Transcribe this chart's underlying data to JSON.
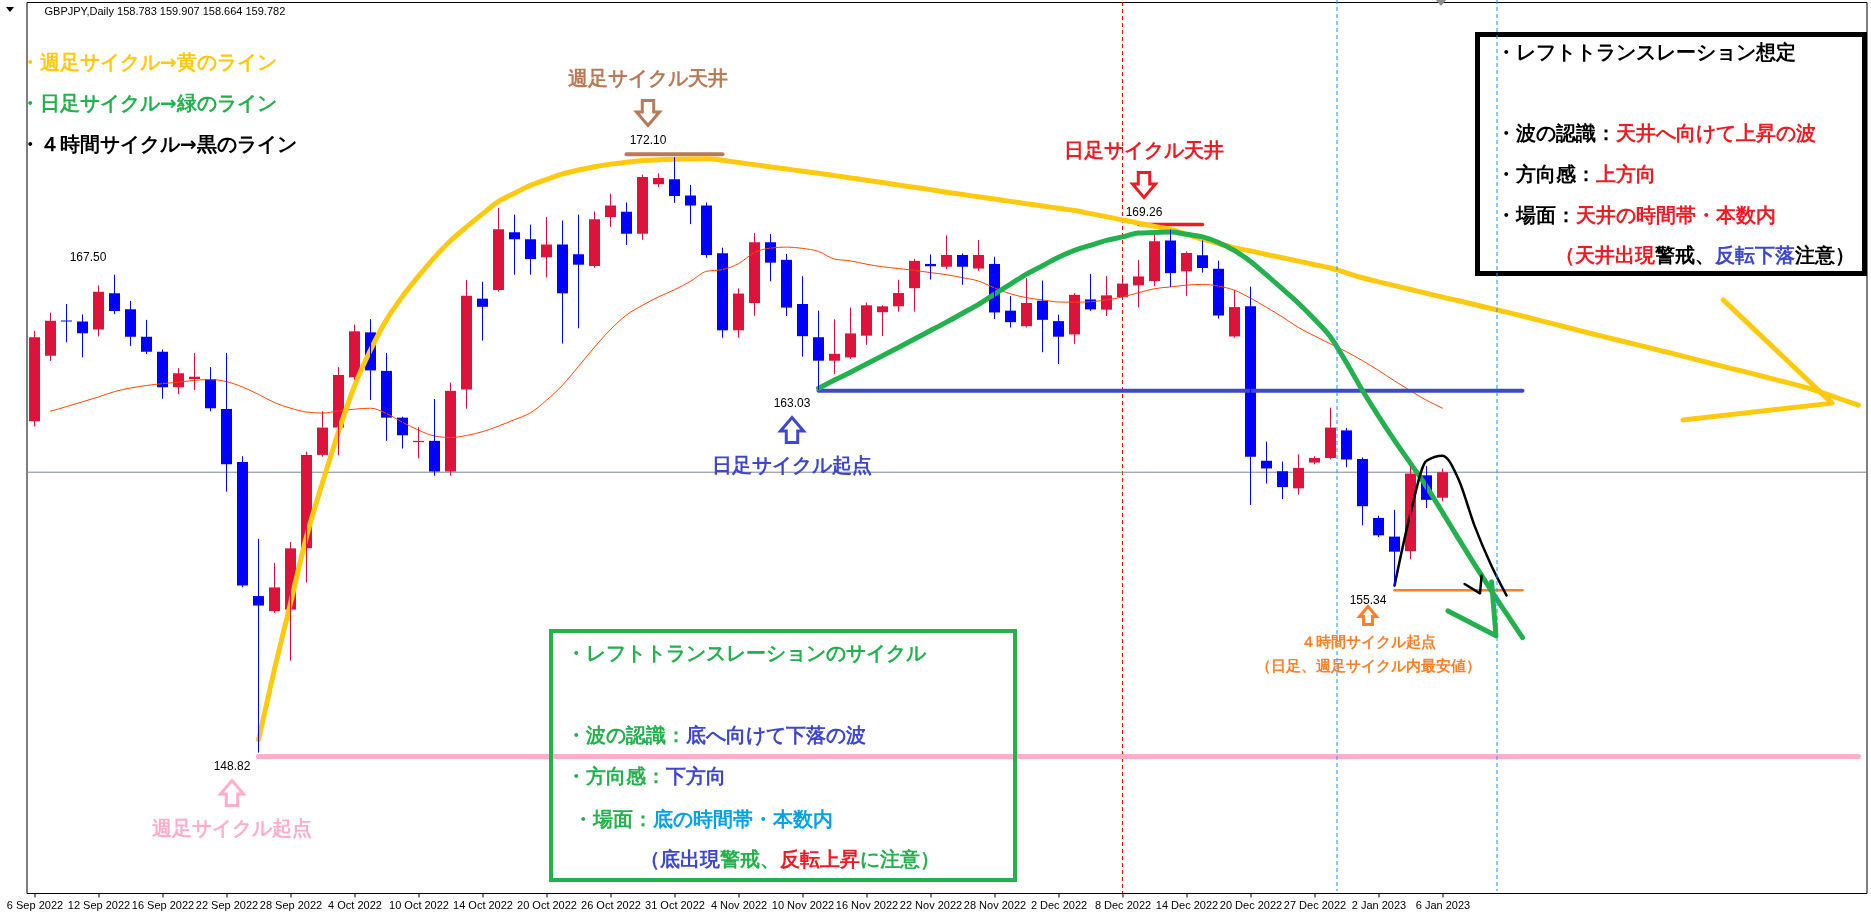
{
  "chart_data": {
    "type": "candlestick",
    "title": "GBPJPY,Daily 158.783 159.907 158.664 159.782",
    "categories": [
      "6 Sep 2022",
      null,
      null,
      null,
      "12 Sep 2022",
      null,
      null,
      null,
      "16 Sep 2022",
      null,
      null,
      null,
      "22 Sep 2022",
      null,
      null,
      null,
      "28 Sep 2022",
      null,
      null,
      null,
      "4 Oct 2022",
      null,
      null,
      null,
      "10 Oct 2022",
      null,
      null,
      null,
      "14 Oct 2022",
      null,
      null,
      null,
      "20 Oct 2022",
      null,
      null,
      null,
      "26 Oct 2022",
      null,
      null,
      null,
      "31 Oct 2022",
      null,
      null,
      null,
      "4 Nov 2022",
      null,
      null,
      null,
      "10 Nov 2022",
      null,
      null,
      null,
      "16 Nov 2022",
      null,
      null,
      null,
      "22 Nov 2022",
      null,
      null,
      null,
      "28 Nov 2022",
      null,
      null,
      null,
      "2 Dec 2022",
      null,
      null,
      null,
      "8 Dec 2022",
      null,
      null,
      null,
      "14 Dec 2022",
      null,
      null,
      null,
      "20 Dec 2022",
      null,
      null,
      null,
      "27 Dec 2022",
      null,
      null,
      null,
      "2 Jan 2023",
      null,
      null,
      null,
      "6 Jan 2023",
      null,
      null,
      null,
      null,
      null,
      null,
      null,
      null,
      null,
      null,
      null,
      null,
      null,
      null,
      null,
      null,
      null,
      null,
      null,
      null,
      null,
      null,
      null,
      null,
      null,
      null
    ],
    "ohlc": [
      [
        161.78,
        165.3,
        161.6,
        165.07
      ],
      [
        164.34,
        166.01,
        164.16,
        165.71
      ],
      [
        165.72,
        166.35,
        164.89,
        165.69
      ],
      [
        165.69,
        165.94,
        164.3,
        165.23
      ],
      [
        165.37,
        167.08,
        165.12,
        166.85
      ],
      [
        166.79,
        167.5,
        165.99,
        166.1
      ],
      [
        166.17,
        166.47,
        164.75,
        165.09
      ],
      [
        165.09,
        165.73,
        164.43,
        164.5
      ],
      [
        164.5,
        164.57,
        162.68,
        163.11
      ],
      [
        163.11,
        163.84,
        162.86,
        163.66
      ],
      [
        163.43,
        164.43,
        163.02,
        163.52
      ],
      [
        163.43,
        163.88,
        162.19,
        162.29
      ],
      [
        162.26,
        164.43,
        159.04,
        160.09
      ],
      [
        160.18,
        160.39,
        155.3,
        155.34
      ],
      [
        154.93,
        157.15,
        148.82,
        154.56
      ],
      [
        154.34,
        156.21,
        154.29,
        155.27
      ],
      [
        154.4,
        157.03,
        152.42,
        156.8
      ],
      [
        156.8,
        160.57,
        155.48,
        160.46
      ],
      [
        160.46,
        162.15,
        160.41,
        161.53
      ],
      [
        161.53,
        163.88,
        160.46,
        163.59
      ],
      [
        163.5,
        165.55,
        163.43,
        165.3
      ],
      [
        165.26,
        165.76,
        162.63,
        163.77
      ],
      [
        163.75,
        164.43,
        161.03,
        161.92
      ],
      [
        161.92,
        161.94,
        160.73,
        161.23
      ],
      [
        160.96,
        161.53,
        160.34,
        161.01
      ],
      [
        161.01,
        162.63,
        159.66,
        159.81
      ],
      [
        159.81,
        163.27,
        159.66,
        162.97
      ],
      [
        163.02,
        167.29,
        162.29,
        166.69
      ],
      [
        166.58,
        167.22,
        164.96,
        166.26
      ],
      [
        166.92,
        170.12,
        166.88,
        169.3
      ],
      [
        169.18,
        169.85,
        167.54,
        168.91
      ],
      [
        168.91,
        169.46,
        167.54,
        168.13
      ],
      [
        168.2,
        169.76,
        167.43,
        168.7
      ],
      [
        168.7,
        169.62,
        164.84,
        166.79
      ],
      [
        168.32,
        169.85,
        165.44,
        167.91
      ],
      [
        167.86,
        169.98,
        167.81,
        169.69
      ],
      [
        169.78,
        170.67,
        169.41,
        170.23
      ],
      [
        169.98,
        170.33,
        168.7,
        169.12
      ],
      [
        169.12,
        171.42,
        168.91,
        171.35
      ],
      [
        171.06,
        171.47,
        170.97,
        171.31
      ],
      [
        171.26,
        172.1,
        170.35,
        170.6
      ],
      [
        170.62,
        171.01,
        169.52,
        170.23
      ],
      [
        170.23,
        170.33,
        168.2,
        168.29
      ],
      [
        168.36,
        168.56,
        165.07,
        165.34
      ],
      [
        165.34,
        166.96,
        165.07,
        166.78
      ],
      [
        166.41,
        169.13,
        165.93,
        168.79
      ],
      [
        168.79,
        169.09,
        167.28,
        167.99
      ],
      [
        168.1,
        168.31,
        165.92,
        166.23
      ],
      [
        166.37,
        167.44,
        164.33,
        165.11
      ],
      [
        165.07,
        166.09,
        163.03,
        164.15
      ],
      [
        164.15,
        165.75,
        163.65,
        164.42
      ],
      [
        164.28,
        166.21,
        164.24,
        165.22
      ],
      [
        165.13,
        166.41,
        164.79,
        166.32
      ],
      [
        166.05,
        166.3,
        165.14,
        166.28
      ],
      [
        166.28,
        167.3,
        166.09,
        166.8
      ],
      [
        166.99,
        168.12,
        166.09,
        168.06
      ],
      [
        167.94,
        168.29,
        167.35,
        167.85
      ],
      [
        167.83,
        169.04,
        167.76,
        168.29
      ],
      [
        168.29,
        168.33,
        167.14,
        167.83
      ],
      [
        167.76,
        168.86,
        167.69,
        168.29
      ],
      [
        167.94,
        168.2,
        165.8,
        166.04
      ],
      [
        166.11,
        166.66,
        165.47,
        165.66
      ],
      [
        165.5,
        167.37,
        165.47,
        166.41
      ],
      [
        166.5,
        167.27,
        164.5,
        165.75
      ],
      [
        165.7,
        165.93,
        164.04,
        165.09
      ],
      [
        165.18,
        166.78,
        164.83,
        166.73
      ],
      [
        166.55,
        167.53,
        166.12,
        166.16
      ],
      [
        166.15,
        167.45,
        165.92,
        166.71
      ],
      [
        166.64,
        167.36,
        166.55,
        167.17
      ],
      [
        167.1,
        168.08,
        166.25,
        167.45
      ],
      [
        167.27,
        169.06,
        167.1,
        168.83
      ],
      [
        168.86,
        169.26,
        167.06,
        167.58
      ],
      [
        167.65,
        168.41,
        166.71,
        168.37
      ],
      [
        168.28,
        168.84,
        167.62,
        167.78
      ],
      [
        167.75,
        168.05,
        165.82,
        165.92
      ],
      [
        165.1,
        166.9,
        165.07,
        166.25
      ],
      [
        166.28,
        167.03,
        158.52,
        160.39
      ],
      [
        160.23,
        160.96,
        159.36,
        159.93
      ],
      [
        159.82,
        160.18,
        158.75,
        159.2
      ],
      [
        159.15,
        160.46,
        158.93,
        159.95
      ],
      [
        160.16,
        160.39,
        160.11,
        160.34
      ],
      [
        160.34,
        162.29,
        160.3,
        161.53
      ],
      [
        161.42,
        161.49,
        160.0,
        160.28
      ],
      [
        160.3,
        160.34,
        157.72,
        158.45
      ],
      [
        157.99,
        158.06,
        157.26,
        157.31
      ],
      [
        157.26,
        158.29,
        155.34,
        156.67
      ],
      [
        156.69,
        160.0,
        156.39,
        159.73
      ],
      [
        159.66,
        160.0,
        158.4,
        158.7
      ],
      [
        158.783,
        159.907,
        158.664,
        159.782
      ],
      null,
      null,
      null,
      null,
      null,
      null,
      null,
      null,
      null,
      null,
      null,
      null,
      null,
      null,
      null,
      null,
      null,
      null,
      null,
      null,
      null,
      null,
      null,
      null,
      null,
      null
    ],
    "colors": [
      "#dc143c",
      "#dc143c",
      "#0000ff",
      "#0000ff",
      "#dc143c",
      "#0000ff",
      "#0000ff",
      "#0000ff",
      "#0000ff",
      "#dc143c",
      "#dc143c",
      "#0000ff",
      "#0000ff",
      "#0000ff",
      "#0000ff",
      "#dc143c",
      "#dc143c",
      "#dc143c",
      "#dc143c",
      "#dc143c",
      "#dc143c",
      "#0000ff",
      "#0000ff",
      "#0000ff",
      "#dc143c",
      "#0000ff",
      "#dc143c",
      "#dc143c",
      "#0000ff",
      "#dc143c",
      "#0000ff",
      "#0000ff",
      "#dc143c",
      "#0000ff",
      "#0000ff",
      "#dc143c",
      "#dc143c",
      "#0000ff",
      "#dc143c",
      "#dc143c",
      "#0000ff",
      "#0000ff",
      "#0000ff",
      "#0000ff",
      "#dc143c",
      "#dc143c",
      "#0000ff",
      "#0000ff",
      "#0000ff",
      "#0000ff",
      "#dc143c",
      "#dc143c",
      "#dc143c",
      "#dc143c",
      "#dc143c",
      "#dc143c",
      "#0000ff",
      "#dc143c",
      "#0000ff",
      "#dc143c",
      "#0000ff",
      "#0000ff",
      "#dc143c",
      "#0000ff",
      "#0000ff",
      "#dc143c",
      "#0000ff",
      "#dc143c",
      "#dc143c",
      "#dc143c",
      "#dc143c",
      "#0000ff",
      "#dc143c",
      "#0000ff",
      "#0000ff",
      "#dc143c",
      "#0000ff",
      "#0000ff",
      "#0000ff",
      "#dc143c",
      "#dc143c",
      "#dc143c",
      "#0000ff",
      "#0000ff",
      "#0000ff",
      "#0000ff",
      "#dc143c",
      "#0000ff",
      "#dc143c",
      null,
      null,
      null,
      null,
      null,
      null,
      null,
      null,
      null,
      null,
      null,
      null,
      null,
      null,
      null,
      null,
      null,
      null,
      null,
      null,
      null,
      null,
      null,
      null,
      null,
      null
    ],
    "series": [
      {
        "type": "line",
        "color": "#ff4500",
        "values": [
          null,
          162.17,
          162.35,
          162.54,
          162.73,
          162.94,
          163.08,
          163.18,
          163.25,
          163.31,
          163.38,
          163.41,
          163.33,
          163.12,
          162.83,
          162.51,
          162.29,
          162.14,
          162.1,
          162.18,
          162.25,
          162.29,
          162.08,
          161.74,
          161.43,
          161.2,
          161.14,
          161.22,
          161.37,
          161.59,
          161.84,
          162.11,
          162.6,
          163.19,
          163.93,
          164.68,
          165.37,
          165.94,
          166.32,
          166.65,
          166.93,
          167.26,
          167.65,
          167.72,
          167.95,
          168.39,
          168.56,
          168.6,
          168.55,
          168.43,
          168.13,
          168.06,
          167.93,
          167.83,
          167.76,
          167.69,
          167.6,
          167.52,
          167.4,
          167.27,
          167.0,
          166.77,
          166.62,
          166.53,
          166.45,
          166.44,
          166.46,
          166.53,
          166.65,
          166.81,
          166.97,
          167.04,
          167.11,
          167.14,
          167.07,
          166.91,
          166.6,
          166.24,
          165.86,
          165.45,
          165.12,
          164.81,
          164.5,
          164.15,
          163.77,
          163.36,
          162.97,
          162.6,
          162.29,
          null,
          null,
          null,
          null,
          null,
          null,
          null,
          null,
          null,
          null,
          null,
          null,
          null,
          null,
          null,
          null,
          null,
          null,
          null,
          null,
          null,
          null,
          null,
          null,
          null,
          null
        ]
      },
      {
        "type": "line",
        "color": "#ffaec9",
        "values": [
          null,
          null,
          null,
          null,
          null,
          null,
          null,
          null,
          null,
          null,
          null,
          null,
          null,
          null,
          148.65,
          148.65,
          148.65,
          148.65,
          148.65,
          148.65,
          148.65,
          148.65,
          148.65,
          148.65,
          148.65,
          148.65,
          148.65,
          148.65,
          148.65,
          148.65,
          148.65,
          148.65,
          148.65,
          148.65,
          148.65,
          148.65,
          148.65,
          148.65,
          148.65,
          148.65,
          148.65,
          148.65,
          148.65,
          148.65,
          148.65,
          148.65,
          148.65,
          148.65,
          148.65,
          148.65,
          148.65,
          148.65,
          148.65,
          148.65,
          148.65,
          148.65,
          148.65,
          148.65,
          148.65,
          148.65,
          148.65,
          148.65,
          148.65,
          148.65,
          148.65,
          148.65,
          148.65,
          148.65,
          148.65,
          148.65,
          148.65,
          148.65,
          148.65,
          148.65,
          148.65,
          148.65,
          148.65,
          148.65,
          148.65,
          148.65,
          148.65,
          148.65,
          148.65,
          148.65,
          148.65,
          148.65,
          148.65,
          148.65,
          148.65,
          148.65,
          148.65,
          148.65,
          148.65,
          148.65,
          148.65,
          148.65,
          148.65,
          148.65,
          148.65,
          148.65,
          148.65,
          148.65,
          148.65,
          148.65,
          148.65,
          148.65,
          148.65,
          148.65,
          148.65,
          148.65,
          148.65,
          148.65,
          148.65,
          148.65,
          148.65
        ]
      },
      {
        "type": "line",
        "color": "#3f48cc",
        "values": [
          null,
          null,
          null,
          null,
          null,
          null,
          null,
          null,
          null,
          null,
          null,
          null,
          null,
          null,
          null,
          null,
          null,
          null,
          null,
          null,
          null,
          null,
          null,
          null,
          null,
          null,
          null,
          null,
          null,
          null,
          null,
          null,
          null,
          null,
          null,
          null,
          null,
          null,
          null,
          null,
          null,
          null,
          null,
          null,
          null,
          null,
          null,
          null,
          null,
          162.97,
          162.97,
          162.97,
          162.97,
          162.97,
          162.97,
          162.97,
          162.97,
          162.97,
          162.97,
          162.97,
          162.97,
          162.97,
          162.97,
          162.97,
          162.97,
          162.97,
          162.97,
          162.97,
          162.97,
          162.97,
          162.97,
          162.97,
          162.97,
          162.97,
          162.97,
          162.97,
          162.97,
          162.97,
          162.97,
          162.97,
          162.97,
          162.97,
          162.97,
          162.97,
          162.97,
          162.97,
          162.97,
          162.97,
          162.97,
          162.97,
          162.97,
          162.97,
          162.97,
          162.97,
          null,
          null,
          null,
          null,
          null,
          null,
          null,
          null,
          null,
          null,
          null,
          null,
          null,
          null,
          null,
          null,
          null,
          null,
          null,
          null,
          null
        ]
      },
      {
        "type": "line",
        "color": "#ff7f27",
        "values": [
          null,
          null,
          null,
          null,
          null,
          null,
          null,
          null,
          null,
          null,
          null,
          null,
          null,
          null,
          null,
          null,
          null,
          null,
          null,
          null,
          null,
          null,
          null,
          null,
          null,
          null,
          null,
          null,
          null,
          null,
          null,
          null,
          null,
          null,
          null,
          null,
          null,
          null,
          null,
          null,
          null,
          null,
          null,
          null,
          null,
          null,
          null,
          null,
          null,
          null,
          null,
          null,
          null,
          null,
          null,
          null,
          null,
          null,
          null,
          null,
          null,
          null,
          null,
          null,
          null,
          null,
          null,
          null,
          null,
          null,
          null,
          null,
          null,
          null,
          null,
          null,
          null,
          null,
          null,
          null,
          null,
          null,
          null,
          null,
          null,
          155.16,
          155.16,
          155.16,
          155.16,
          155.16,
          155.16,
          155.16,
          155.16,
          155.16,
          null,
          null,
          null,
          null,
          null,
          null,
          null,
          null,
          null,
          null,
          null,
          null,
          null,
          null,
          null,
          null,
          null,
          null,
          null,
          null,
          null
        ]
      },
      {
        "type": "line",
        "color": "#b97a57",
        "values": [
          null,
          null,
          null,
          null,
          null,
          null,
          null,
          null,
          null,
          null,
          null,
          null,
          null,
          null,
          null,
          null,
          null,
          null,
          null,
          null,
          null,
          null,
          null,
          null,
          null,
          null,
          null,
          null,
          null,
          null,
          null,
          null,
          null,
          null,
          null,
          null,
          null,
          172.24,
          172.24,
          172.24,
          172.24,
          172.24,
          172.24,
          172.24,
          null,
          null,
          null,
          null,
          null,
          null,
          null,
          null,
          null,
          null,
          null,
          null,
          null,
          null,
          null,
          null,
          null,
          null,
          null,
          null,
          null,
          null,
          null,
          null,
          null,
          null,
          null,
          null,
          null,
          null,
          null,
          null,
          null,
          null,
          null,
          null,
          null,
          null,
          null,
          null,
          null,
          null,
          null,
          null,
          null,
          null,
          null,
          null,
          null,
          null,
          null,
          null,
          null,
          null,
          null,
          null,
          null,
          null,
          null,
          null,
          null,
          null,
          null,
          null,
          null,
          null,
          null,
          null,
          null,
          null,
          null
        ]
      },
      {
        "type": "line",
        "color": "#ed1c24",
        "values": [
          null,
          null,
          null,
          null,
          null,
          null,
          null,
          null,
          null,
          null,
          null,
          null,
          null,
          null,
          null,
          null,
          null,
          null,
          null,
          null,
          null,
          null,
          null,
          null,
          null,
          null,
          null,
          null,
          null,
          null,
          null,
          null,
          null,
          null,
          null,
          null,
          null,
          null,
          null,
          null,
          null,
          null,
          null,
          null,
          null,
          null,
          null,
          null,
          null,
          null,
          null,
          null,
          null,
          null,
          null,
          null,
          null,
          null,
          null,
          null,
          null,
          null,
          null,
          null,
          null,
          null,
          null,
          null,
          null,
          169.48,
          169.48,
          169.48,
          169.48,
          169.48,
          null,
          null,
          null,
          null,
          null,
          null,
          null,
          null,
          null,
          null,
          null,
          null,
          null,
          null,
          null,
          null,
          null,
          null,
          null,
          null,
          null,
          null,
          null,
          null,
          null,
          null,
          null,
          null,
          null,
          null,
          null,
          null,
          null,
          null,
          null,
          null,
          null,
          null,
          null,
          null,
          null
        ]
      },
      {
        "type": "line",
        "name": "・週足サイクル→黄のライン",
        "color": "#ffc90e",
        "values": [
          null,
          null,
          null,
          null,
          null,
          null,
          null,
          null,
          null,
          null,
          null,
          null,
          null,
          null,
          149.3,
          152.07,
          154.65,
          157.26,
          159.37,
          161.37,
          163.16,
          164.57,
          165.75,
          166.67,
          167.46,
          168.2,
          168.85,
          169.39,
          169.9,
          170.39,
          170.71,
          171.02,
          171.25,
          171.47,
          171.62,
          171.75,
          171.85,
          171.92,
          171.99,
          172.02,
          172.04,
          172.05,
          172.06,
          172.0,
          171.91,
          171.83,
          171.74,
          171.66,
          171.57,
          171.49,
          171.4,
          171.31,
          171.22,
          171.13,
          171.03,
          170.94,
          170.85,
          170.75,
          170.66,
          170.57,
          170.48,
          170.39,
          170.3,
          170.21,
          170.12,
          170.03,
          169.91,
          169.79,
          169.66,
          169.54,
          169.41,
          169.29,
          169.1,
          168.9,
          168.74,
          168.57,
          168.45,
          168.31,
          168.18,
          168.05,
          167.91,
          167.78,
          167.59,
          167.4,
          167.24,
          167.09,
          166.94,
          166.79,
          166.64,
          166.5,
          166.35,
          166.2,
          166.05,
          165.9,
          165.74,
          165.58,
          165.42,
          165.26,
          165.1,
          164.95,
          164.8,
          164.64,
          164.49,
          164.33,
          164.17,
          164.01,
          163.85,
          163.7,
          163.54,
          163.38,
          163.22,
          163.05,
          162.84,
          162.62,
          162.41
        ]
      },
      {
        "type": "line",
        "name": "・日足サイクル→緑のライン",
        "color": "#22b14c",
        "values": [
          null,
          null,
          null,
          null,
          null,
          null,
          null,
          null,
          null,
          null,
          null,
          null,
          null,
          null,
          null,
          null,
          null,
          null,
          null,
          null,
          null,
          null,
          null,
          null,
          null,
          null,
          null,
          null,
          null,
          null,
          null,
          null,
          null,
          null,
          null,
          null,
          null,
          null,
          null,
          null,
          null,
          null,
          null,
          null,
          null,
          null,
          null,
          null,
          null,
          163.07,
          163.39,
          163.7,
          164.02,
          164.34,
          164.67,
          165.0,
          165.33,
          165.66,
          166.01,
          166.36,
          166.76,
          167.15,
          167.54,
          167.87,
          168.2,
          168.47,
          168.67,
          168.86,
          169.0,
          169.15,
          169.17,
          169.19,
          169.1,
          169.0,
          168.78,
          168.46,
          168.04,
          167.51,
          166.96,
          166.4,
          165.77,
          165.08,
          164.07,
          162.98,
          161.98,
          161.03,
          160.13,
          159.22,
          158.21,
          157.18,
          156.17,
          155.19,
          154.24,
          153.3,
          null,
          null,
          null,
          null,
          null,
          null,
          null,
          null,
          null,
          null,
          null,
          null,
          null,
          null,
          null,
          null,
          null,
          null,
          null,
          null,
          null
        ]
      },
      {
        "type": "line",
        "name": "・４時間サイクル→黒のライン",
        "color": "#000000",
        "values": [
          null,
          null,
          null,
          null,
          null,
          null,
          null,
          null,
          null,
          null,
          null,
          null,
          null,
          null,
          null,
          null,
          null,
          null,
          null,
          null,
          null,
          null,
          null,
          null,
          null,
          null,
          null,
          null,
          null,
          null,
          null,
          null,
          null,
          null,
          null,
          null,
          null,
          null,
          null,
          null,
          null,
          null,
          null,
          null,
          null,
          null,
          null,
          null,
          null,
          null,
          null,
          null,
          null,
          null,
          null,
          null,
          null,
          null,
          null,
          null,
          null,
          null,
          null,
          null,
          null,
          null,
          null,
          null,
          null,
          null,
          null,
          null,
          null,
          null,
          null,
          null,
          null,
          null,
          null,
          null,
          null,
          null,
          null,
          null,
          null,
          155.34,
          158.17,
          160.23,
          160.43,
          159.51,
          157.69,
          156.2,
          154.96,
          null,
          null,
          null,
          null,
          null,
          null,
          null,
          null,
          null,
          null,
          null,
          null,
          null,
          null,
          null,
          null,
          null,
          null,
          null,
          null,
          null,
          null
        ]
      }
    ],
    "ylim": [
      143.3,
      178.2
    ],
    "tick_labels": "x",
    "legend": "top left",
    "ref_lines": [
      {
        "axis": "x",
        "value": "8 Dec 2022",
        "color": "#ff0000",
        "line_style": "dashed"
      },
      {
        "axis": "y",
        "value": 159.782,
        "color": "#778899"
      }
    ],
    "annotations": [
      "167.50",
      {
        "text": "172.10",
        "x": "31 Oct 2022",
        "y": 172.1
      },
      "週足サイクル天井",
      "169.26",
      "日足サイクル天井",
      "163.03",
      "日足サイクル起点",
      "148.82",
      "週足サイクル起点",
      "155.34",
      "４時間サイクル起点",
      "（日足、週足サイクル内最安値）",
      "・レフトトランスレーション想定",
      "・波の認識：天井へ向けて上昇の波",
      "・方向感：上方向",
      "・場面：天井の時間帯・本数内",
      "（天井出現警戒、反転下落注意）",
      "・レフトトランスレーションのサイクル",
      "・波の認識：底へ向けて下落の波",
      "・方向感：下方向",
      "・場面：底の時間帯・本数内",
      "（底出現警戒、反転上昇に注意）"
    ]
  }
}
